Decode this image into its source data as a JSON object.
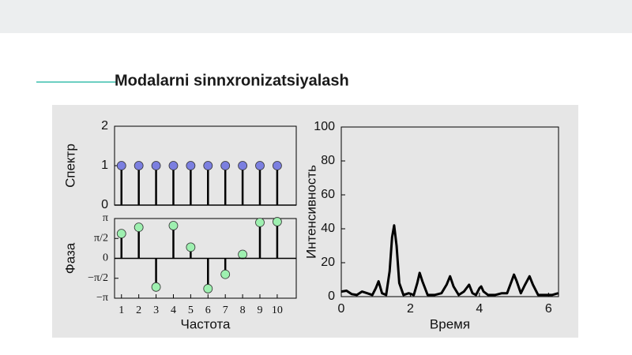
{
  "heading": "Modalarni sinnxronizatsiyalash",
  "chart_data": [
    {
      "type": "stem",
      "ylabel": "Спектр",
      "x": [
        1,
        2,
        3,
        4,
        5,
        6,
        7,
        8,
        9,
        10
      ],
      "values": [
        1,
        1,
        1,
        1,
        1,
        1,
        1,
        1,
        1,
        1
      ],
      "color": "#7b7fe0",
      "xlim": [
        0.6,
        11.1
      ],
      "ylim": [
        0,
        2
      ],
      "yticks": [
        0,
        1,
        2
      ]
    },
    {
      "type": "stem",
      "ylabel": "Фаза",
      "xlabel": "Частота",
      "x": [
        1,
        2,
        3,
        4,
        5,
        6,
        7,
        8,
        9,
        10
      ],
      "values": [
        1.95,
        2.45,
        -2.26,
        2.58,
        0.88,
        -2.39,
        -1.26,
        0.31,
        2.83,
        2.89
      ],
      "color": "#9ef0b0",
      "xlim": [
        0.6,
        11.1
      ],
      "ylim": [
        -3.1416,
        3.1416
      ],
      "xticks": [
        1,
        2,
        3,
        4,
        5,
        6,
        7,
        8,
        9,
        10
      ],
      "yticks": [
        {
          "value": -3.1416,
          "label": "−π"
        },
        {
          "value": -1.5708,
          "label": "−π/2"
        },
        0,
        {
          "value": 1.5708,
          "label": "π/2"
        },
        {
          "value": 3.1416,
          "label": "π"
        }
      ]
    },
    {
      "type": "line",
      "ylabel": "Интенсивность",
      "xlabel": "Время",
      "color": "#000000",
      "x": [
        0,
        0.15,
        0.3,
        0.45,
        0.6,
        0.75,
        0.9,
        1.0,
        1.08,
        1.18,
        1.3,
        1.4,
        1.47,
        1.53,
        1.6,
        1.68,
        1.8,
        1.95,
        2.1,
        2.2,
        2.27,
        2.35,
        2.5,
        2.7,
        2.9,
        3.05,
        3.15,
        3.25,
        3.4,
        3.55,
        3.7,
        3.8,
        3.9,
        4.0,
        4.05,
        4.12,
        4.25,
        4.45,
        4.65,
        4.8,
        4.93,
        5.0,
        5.08,
        5.2,
        5.32,
        5.45,
        5.55,
        5.7,
        5.9,
        6.1,
        6.28
      ],
      "values": [
        3,
        3.5,
        1.5,
        1,
        3,
        2,
        1,
        5,
        9,
        2,
        1,
        15,
        35,
        42,
        30,
        8,
        1,
        2,
        1,
        8,
        14,
        9,
        1,
        1,
        2,
        7,
        12,
        6,
        1,
        3,
        7,
        2,
        1,
        5,
        6,
        3,
        1,
        1,
        2,
        2,
        9,
        13,
        9,
        2,
        7,
        12,
        7,
        1,
        1,
        1,
        2
      ],
      "xlim": [
        0,
        6.29
      ],
      "ylim": [
        0,
        100
      ],
      "xticks": [
        0,
        2,
        4,
        6
      ],
      "yticks": [
        0,
        20,
        40,
        60,
        80,
        100
      ]
    }
  ]
}
